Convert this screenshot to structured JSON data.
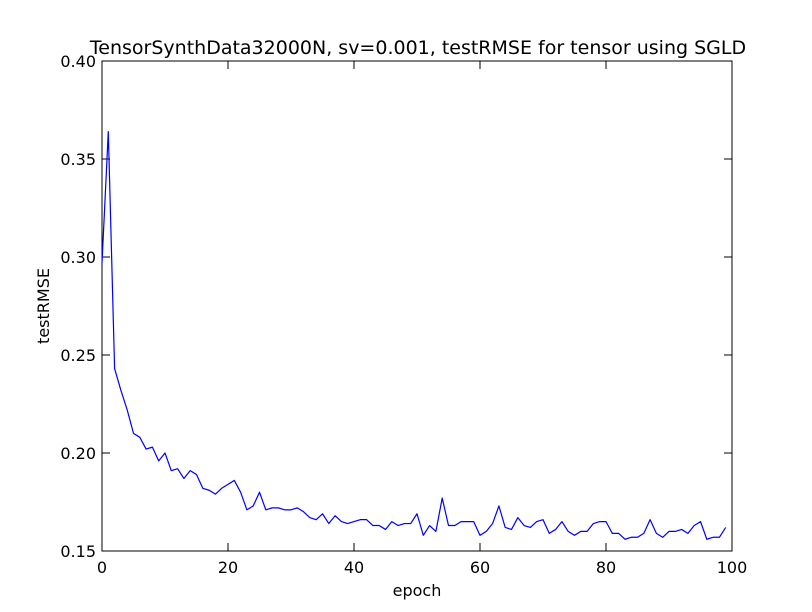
{
  "chart_data": {
    "type": "line",
    "title": "TensorSynthData32000N, sv=0.001, testRMSE for tensor using SGLD",
    "xlabel": "epoch",
    "ylabel": "testRMSE",
    "xlim": [
      0,
      100
    ],
    "ylim": [
      0.15,
      0.4
    ],
    "xticks": [
      0,
      20,
      40,
      60,
      80,
      100
    ],
    "xtick_labels": [
      "0",
      "20",
      "40",
      "60",
      "80",
      "100"
    ],
    "yticks": [
      0.15,
      0.2,
      0.25,
      0.3,
      0.35,
      0.4
    ],
    "ytick_labels": [
      "0.15",
      "0.20",
      "0.25",
      "0.30",
      "0.35",
      "0.40"
    ],
    "grid": false,
    "series": [
      {
        "color": "#0000ff",
        "x": [
          0,
          1,
          2,
          3,
          4,
          5,
          6,
          7,
          8,
          9,
          10,
          11,
          12,
          13,
          14,
          15,
          16,
          17,
          18,
          19,
          20,
          21,
          22,
          23,
          24,
          25,
          26,
          27,
          28,
          29,
          30,
          31,
          32,
          33,
          34,
          35,
          36,
          37,
          38,
          39,
          40,
          41,
          42,
          43,
          44,
          45,
          46,
          47,
          48,
          49,
          50,
          51,
          52,
          53,
          54,
          55,
          56,
          57,
          58,
          59,
          60,
          61,
          62,
          63,
          64,
          65,
          66,
          67,
          68,
          69,
          70,
          71,
          72,
          73,
          74,
          75,
          76,
          77,
          78,
          79,
          80,
          81,
          82,
          83,
          84,
          85,
          86,
          87,
          88,
          89,
          90,
          91,
          92,
          93,
          94,
          95,
          96,
          97,
          98,
          99
        ],
        "values": [
          0.297,
          0.364,
          0.243,
          0.232,
          0.222,
          0.21,
          0.208,
          0.202,
          0.203,
          0.196,
          0.2,
          0.191,
          0.192,
          0.187,
          0.191,
          0.189,
          0.182,
          0.181,
          0.179,
          0.182,
          0.184,
          0.186,
          0.18,
          0.171,
          0.173,
          0.18,
          0.171,
          0.172,
          0.172,
          0.171,
          0.171,
          0.172,
          0.17,
          0.167,
          0.166,
          0.169,
          0.164,
          0.168,
          0.165,
          0.164,
          0.165,
          0.166,
          0.166,
          0.163,
          0.163,
          0.161,
          0.165,
          0.163,
          0.164,
          0.164,
          0.169,
          0.158,
          0.163,
          0.16,
          0.177,
          0.163,
          0.163,
          0.165,
          0.165,
          0.165,
          0.158,
          0.16,
          0.164,
          0.173,
          0.162,
          0.161,
          0.167,
          0.163,
          0.162,
          0.165,
          0.166,
          0.159,
          0.161,
          0.165,
          0.16,
          0.158,
          0.16,
          0.16,
          0.164,
          0.165,
          0.165,
          0.159,
          0.159,
          0.156,
          0.157,
          0.157,
          0.159,
          0.166,
          0.159,
          0.157,
          0.16,
          0.16,
          0.161,
          0.159,
          0.163,
          0.165,
          0.156,
          0.157,
          0.157,
          0.162
        ]
      }
    ]
  }
}
